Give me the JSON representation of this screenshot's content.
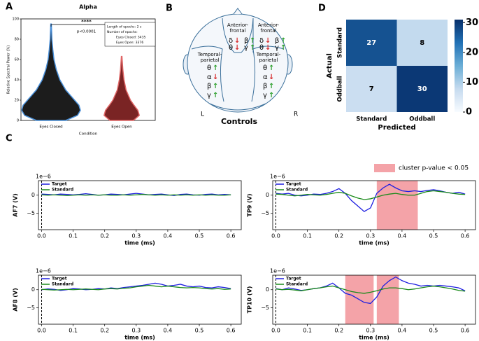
{
  "figure": {
    "panel_labels": [
      "A",
      "B",
      "C",
      "D"
    ],
    "cluster_legend": "cluster p-value < 0.05",
    "cluster_color": "#f4a3a8"
  },
  "diagram": {
    "regions": [
      {
        "label": [
          "Anterior-",
          "frontal"
        ],
        "symbols": [
          {
            "sym": "δ",
            "dir": "↓",
            "color": "#d62728"
          },
          {
            "sym": "β",
            "dir": "↑",
            "color": "#2ca02c"
          },
          {
            "sym": "θ",
            "dir": "↓",
            "color": "#d62728"
          },
          {
            "sym": "γ",
            "dir": "↑",
            "color": "#2ca02c"
          }
        ]
      },
      {
        "label": [
          "Anterior-",
          "frontal"
        ],
        "symbols": [
          {
            "sym": "δ",
            "dir": "↓",
            "color": "#d62728"
          },
          {
            "sym": "β",
            "dir": "↑",
            "color": "#2ca02c"
          },
          {
            "sym": "θ",
            "dir": "↓",
            "color": "#d62728"
          },
          {
            "sym": "γ",
            "dir": "↑",
            "color": "#2ca02c"
          }
        ]
      },
      {
        "label": [
          "Temporal-",
          "parietal"
        ],
        "symbols": [
          {
            "sym": "θ",
            "dir": "↑",
            "color": "#2ca02c"
          },
          {
            "sym": "α",
            "dir": "↓",
            "color": "#d62728"
          },
          {
            "sym": "β",
            "dir": "↑",
            "color": "#2ca02c"
          },
          {
            "sym": "γ",
            "dir": "↑",
            "color": "#2ca02c"
          }
        ]
      },
      {
        "label": [
          "Temporal-",
          "parietal"
        ],
        "symbols": [
          {
            "sym": "θ",
            "dir": "↑",
            "color": "#2ca02c"
          },
          {
            "sym": "α",
            "dir": "↓",
            "color": "#d62728"
          },
          {
            "sym": "β",
            "dir": "↑",
            "color": "#2ca02c"
          },
          {
            "sym": "γ",
            "dir": "↑",
            "color": "#2ca02c"
          }
        ]
      }
    ],
    "left": "L",
    "right": "R",
    "caption": "Controls"
  },
  "chart_data": [
    {
      "type": "violin",
      "title": "Alpha",
      "ylabel": "Relative Spectral Power (%)",
      "xlabel": "Condition",
      "categories": [
        "Eyes Closed",
        "Eyes Open"
      ],
      "ylim": [
        0,
        100
      ],
      "yticks": [
        0,
        20,
        40,
        60,
        80,
        100
      ],
      "violins": [
        {
          "fill": "#1c1c1c",
          "edge": "#4a90d9",
          "y": [
            0,
            5,
            10,
            15,
            20,
            25,
            30,
            40,
            50,
            60,
            70,
            80,
            95
          ],
          "width": [
            0.5,
            0.9,
            1,
            0.95,
            0.8,
            0.65,
            0.5,
            0.3,
            0.18,
            0.1,
            0.06,
            0.03,
            0.01
          ]
        },
        {
          "fill": "#7a2424",
          "edge": "#e06666",
          "y": [
            0,
            5,
            10,
            15,
            20,
            30,
            40,
            50,
            63
          ],
          "width": [
            0.4,
            0.6,
            0.55,
            0.42,
            0.3,
            0.15,
            0.08,
            0.04,
            0.01
          ]
        }
      ],
      "significance": "****",
      "p_value": "p<0.0001",
      "annotation": [
        "Length of epochs: 2 s",
        "Number of epochs:",
        "Eyes Closed: 3435",
        "Eyes Open: 3376"
      ]
    },
    {
      "type": "heatmap",
      "xlabel": "Predicted",
      "ylabel": "Actual",
      "x_categories": [
        "Standard",
        "Oddball"
      ],
      "y_categories": [
        "Standard",
        "Oddball"
      ],
      "values": [
        [
          27,
          8
        ],
        [
          7,
          30
        ]
      ],
      "clim": [
        0,
        31
      ],
      "cticks": [
        0,
        10,
        20,
        30
      ],
      "colors": [
        "#f7fbff",
        "#c6dbef",
        "#6baed6",
        "#2171b5",
        "#08306b"
      ]
    },
    {
      "type": "line",
      "ylabel": "AF7 (V)",
      "xlabel": "time (ms)",
      "scale_label": "1e−6",
      "onset": 0,
      "xlim": [
        -0.01,
        0.633
      ],
      "ylim": [
        -9.5,
        4
      ],
      "xticks": [
        {
          "value": 0,
          "label": "0.0"
        },
        0.1,
        0.2,
        0.3,
        0.4,
        0.5,
        0.6
      ],
      "yticks": [
        {
          "value": -5,
          "label": "−5"
        },
        0
      ],
      "clusters": [],
      "x": [
        0,
        0.02,
        0.04,
        0.06,
        0.08,
        0.1,
        0.12,
        0.14,
        0.16,
        0.18,
        0.2,
        0.22,
        0.24,
        0.26,
        0.28,
        0.3,
        0.32,
        0.34,
        0.36,
        0.38,
        0.4,
        0.42,
        0.44,
        0.46,
        0.48,
        0.5,
        0.52,
        0.54,
        0.56,
        0.58,
        0.6
      ],
      "series": [
        {
          "name": "Target",
          "color": "#1f1fe0",
          "values": [
            0.3,
            0.2,
            0.1,
            0.3,
            0.2,
            0.1,
            0.2,
            0.4,
            0.2,
            0.0,
            0.1,
            0.3,
            0.2,
            0.1,
            0.3,
            0.5,
            0.3,
            0.1,
            0.2,
            0.3,
            0.1,
            -0.1,
            0.2,
            0.3,
            0.1,
            0.0,
            0.2,
            0.3,
            0.1,
            0.2,
            0.1
          ]
        },
        {
          "name": "Standard",
          "color": "#1a8a1a",
          "values": [
            0.1,
            0.0,
            0.1,
            0.0,
            -0.1,
            0.0,
            0.1,
            0.0,
            0.1,
            0.0,
            0.1,
            0.0,
            0.0,
            0.1,
            0.0,
            0.1,
            0.2,
            0.1,
            0.0,
            0.1,
            0.0,
            0.1,
            0.0,
            0.1,
            0.0,
            0.1,
            0.0,
            0.1,
            0.0,
            0.0,
            0.1
          ]
        }
      ]
    },
    {
      "type": "line",
      "ylabel": "TP9 (V)",
      "xlabel": "time (ms)",
      "scale_label": "1e−6",
      "onset": 0,
      "xlim": [
        -0.01,
        0.633
      ],
      "ylim": [
        -9.5,
        4
      ],
      "xticks": [
        {
          "value": 0,
          "label": "0.0"
        },
        0.1,
        0.2,
        0.3,
        0.4,
        0.5,
        0.6
      ],
      "yticks": [
        {
          "value": -5,
          "label": "−5"
        },
        0
      ],
      "clusters": [
        [
          0.32,
          0.45
        ]
      ],
      "x": [
        0,
        0.02,
        0.04,
        0.06,
        0.08,
        0.1,
        0.12,
        0.14,
        0.16,
        0.18,
        0.2,
        0.22,
        0.24,
        0.26,
        0.28,
        0.3,
        0.32,
        0.34,
        0.36,
        0.38,
        0.4,
        0.42,
        0.44,
        0.46,
        0.48,
        0.5,
        0.52,
        0.54,
        0.56,
        0.58,
        0.6
      ],
      "series": [
        {
          "name": "Target",
          "color": "#1f1fe0",
          "values": [
            0.5,
            0.3,
            0.5,
            0.0,
            -0.2,
            0.0,
            0.3,
            0.2,
            0.5,
            1.0,
            1.8,
            0.5,
            -1.5,
            -3.0,
            -4.5,
            -3.5,
            0.5,
            2.0,
            3.0,
            2.0,
            1.2,
            1.0,
            1.2,
            1.0,
            1.3,
            1.5,
            1.2,
            0.8,
            0.5,
            0.8,
            0.3
          ]
        },
        {
          "name": "Standard",
          "color": "#1a8a1a",
          "values": [
            0.3,
            0.2,
            0.0,
            -0.2,
            0.0,
            0.2,
            0.1,
            0.0,
            0.2,
            0.5,
            0.8,
            0.5,
            -0.2,
            -0.8,
            -1.2,
            -1.0,
            -0.5,
            0.0,
            0.3,
            0.5,
            0.2,
            0.0,
            0.0,
            0.5,
            1.0,
            1.2,
            1.0,
            0.8,
            0.5,
            0.3,
            0.2
          ]
        }
      ]
    },
    {
      "type": "line",
      "ylabel": "AF8 (V)",
      "xlabel": "time (ms)",
      "scale_label": "1e−6",
      "onset": 0,
      "xlim": [
        -0.01,
        0.633
      ],
      "ylim": [
        -9.5,
        4
      ],
      "xticks": [
        {
          "value": 0,
          "label": "0.0"
        },
        0.1,
        0.2,
        0.3,
        0.4,
        0.5,
        0.6
      ],
      "yticks": [
        {
          "value": -5,
          "label": "−5"
        },
        0
      ],
      "clusters": [],
      "x": [
        0,
        0.02,
        0.04,
        0.06,
        0.08,
        0.1,
        0.12,
        0.14,
        0.16,
        0.18,
        0.2,
        0.22,
        0.24,
        0.26,
        0.28,
        0.3,
        0.32,
        0.34,
        0.36,
        0.38,
        0.4,
        0.42,
        0.44,
        0.46,
        0.48,
        0.5,
        0.52,
        0.54,
        0.56,
        0.58,
        0.6
      ],
      "series": [
        {
          "name": "Target",
          "color": "#1f1fe0",
          "values": [
            0.0,
            0.2,
            0.1,
            -0.2,
            0.0,
            0.3,
            0.2,
            0.0,
            0.1,
            0.3,
            0.2,
            0.5,
            0.3,
            0.6,
            0.8,
            1.0,
            1.2,
            1.5,
            1.8,
            1.5,
            1.0,
            1.2,
            1.5,
            1.0,
            0.8,
            1.0,
            0.6,
            0.5,
            0.8,
            0.6,
            0.3
          ]
        },
        {
          "name": "Standard",
          "color": "#1a8a1a",
          "values": [
            0.1,
            0.0,
            -0.1,
            0.0,
            0.1,
            0.0,
            0.1,
            0.2,
            0.1,
            0.0,
            0.2,
            0.3,
            0.2,
            0.4,
            0.5,
            0.8,
            1.0,
            1.2,
            1.0,
            0.8,
            1.0,
            0.8,
            0.6,
            0.5,
            0.6,
            0.5,
            0.3,
            0.2,
            0.3,
            0.1,
            0.2
          ]
        }
      ]
    },
    {
      "type": "line",
      "ylabel": "TP10 (V)",
      "xlabel": "time (ms)",
      "scale_label": "1e−6",
      "onset": 0,
      "xlim": [
        -0.01,
        0.633
      ],
      "ylim": [
        -9.5,
        4
      ],
      "xticks": [
        {
          "value": 0,
          "label": "0.0"
        },
        0.1,
        0.2,
        0.3,
        0.4,
        0.5,
        0.6
      ],
      "yticks": [
        {
          "value": -5,
          "label": "−5"
        },
        0
      ],
      "clusters": [
        [
          0.22,
          0.31
        ],
        [
          0.32,
          0.39
        ]
      ],
      "x": [
        0,
        0.02,
        0.04,
        0.06,
        0.08,
        0.1,
        0.12,
        0.14,
        0.16,
        0.18,
        0.2,
        0.22,
        0.24,
        0.26,
        0.28,
        0.3,
        0.32,
        0.34,
        0.36,
        0.38,
        0.4,
        0.42,
        0.44,
        0.46,
        0.48,
        0.5,
        0.52,
        0.54,
        0.56,
        0.58,
        0.6
      ],
      "series": [
        {
          "name": "Target",
          "color": "#1f1fe0",
          "values": [
            0.3,
            0.0,
            0.5,
            0.2,
            -0.2,
            0.0,
            0.3,
            0.5,
            1.0,
            1.8,
            0.5,
            -1.0,
            -1.5,
            -2.5,
            -3.5,
            -3.8,
            -2.0,
            1.0,
            2.5,
            3.5,
            2.5,
            1.8,
            1.5,
            1.0,
            1.2,
            1.0,
            1.2,
            1.0,
            0.8,
            0.5,
            -0.3
          ]
        },
        {
          "name": "Standard",
          "color": "#1a8a1a",
          "values": [
            0.2,
            0.0,
            0.1,
            -0.1,
            -0.3,
            0.0,
            0.3,
            0.5,
            0.8,
            1.0,
            0.5,
            0.0,
            -0.5,
            -0.8,
            -1.0,
            -0.7,
            -0.3,
            0.2,
            0.5,
            0.5,
            0.3,
            0.0,
            0.2,
            0.5,
            0.8,
            1.0,
            0.8,
            0.5,
            0.2,
            -0.2,
            -0.4
          ]
        }
      ]
    }
  ]
}
